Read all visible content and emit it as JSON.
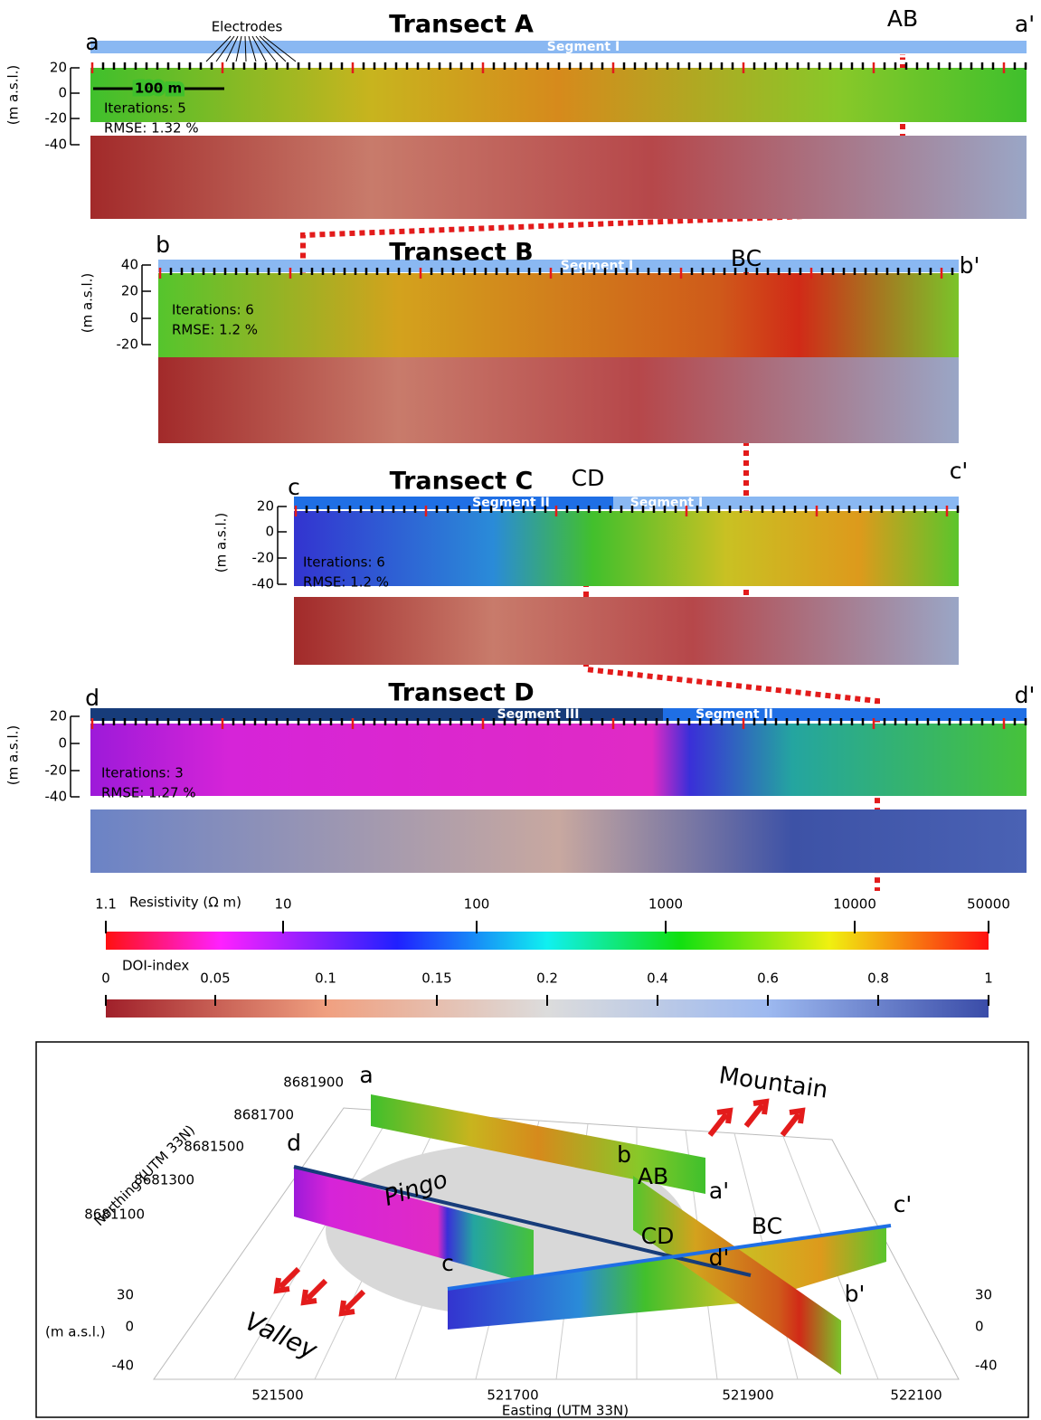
{
  "transects": [
    {
      "title": "Transect A",
      "start": "a",
      "end": "a'",
      "junction": "AB",
      "segments": [
        "Segment I"
      ],
      "ylabel": "(m a.s.l.)",
      "yticks": [
        "20",
        "0",
        "-20",
        "-40"
      ],
      "iterations": "Iterations: 5",
      "rmse": "RMSE: 1.32 %",
      "electrodes": "Electrodes",
      "scale": "100 m"
    },
    {
      "title": "Transect B",
      "start": "b",
      "end": "b'",
      "junction": "BC",
      "segments": [
        "Segment I"
      ],
      "ylabel": "(m a.s.l.)",
      "yticks": [
        "40",
        "20",
        "0",
        "-20"
      ],
      "iterations": "Iterations: 6",
      "rmse": "RMSE: 1.2 %"
    },
    {
      "title": "Transect C",
      "start": "c",
      "end": "c'",
      "junction": "CD",
      "segments": [
        "Segment II",
        "Segment I"
      ],
      "ylabel": "(m a.s.l.)",
      "yticks": [
        "20",
        "0",
        "-20",
        "-40"
      ],
      "iterations": "Iterations: 6",
      "rmse": "RMSE: 1.2 %"
    },
    {
      "title": "Transect D",
      "start": "d",
      "end": "d'",
      "segments": [
        "Segment III",
        "Segment II"
      ],
      "ylabel": "(m a.s.l.)",
      "yticks": [
        "20",
        "0",
        "-20",
        "-40"
      ],
      "iterations": "Iterations: 3",
      "rmse": "RMSE: 1.27 %"
    }
  ],
  "colorbars": {
    "resistivity": {
      "label": "Resistivity (Ω m)",
      "ticks": [
        "1.1",
        "10",
        "100",
        "1000",
        "10000",
        "50000"
      ]
    },
    "doi": {
      "label": "DOI-index",
      "ticks": [
        "0",
        "0.05",
        "0.1",
        "0.15",
        "0.2",
        "0.4",
        "0.6",
        "0.8",
        "1"
      ]
    }
  },
  "map": {
    "northing_label": "Northing (UTM 33N)",
    "northing_ticks": [
      "8681900",
      "8681700",
      "8681500",
      "8681300",
      "8681100"
    ],
    "easting_label": "Easting (UTM 33N)",
    "easting_ticks": [
      "521500",
      "521700",
      "521900",
      "522100"
    ],
    "z_label": "(m a.s.l.)",
    "z_ticks": [
      "30",
      "0",
      "-40"
    ],
    "features": [
      "Mountain",
      "Valley",
      "Pingo"
    ],
    "profile_labels": [
      "a",
      "b",
      "AB",
      "a'",
      "d",
      "c'",
      "CD",
      "BC",
      "d'",
      "c",
      "b'"
    ]
  }
}
